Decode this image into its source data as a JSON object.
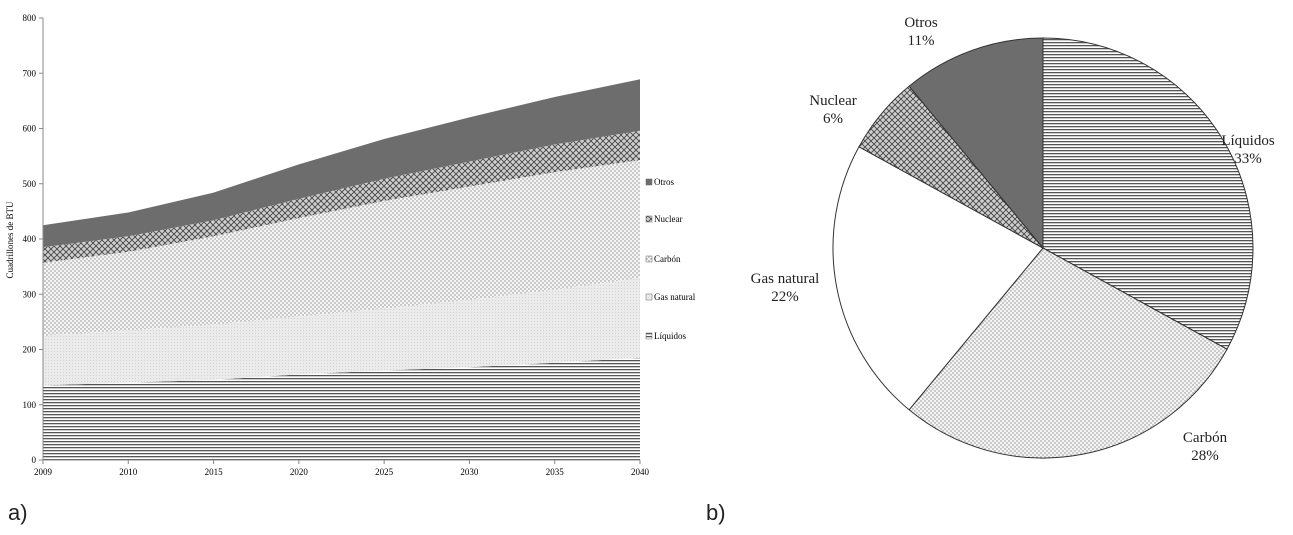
{
  "panel_labels": {
    "a": "a)",
    "b": "b)"
  },
  "chart_data": [
    {
      "type": "area",
      "stacked": true,
      "ylabel": "Cuadrillones de BTU",
      "xlabel": "",
      "title": "",
      "ylim": [
        0,
        800
      ],
      "yticks": [
        "0",
        "100",
        "200",
        "300",
        "400",
        "500",
        "600",
        "700",
        "800"
      ],
      "x": [
        "2009",
        "2010",
        "2015",
        "2020",
        "2025",
        "2030",
        "2035",
        "2040"
      ],
      "grid": false,
      "legend_position": "right",
      "series": [
        {
          "name": "Líquidos",
          "pattern": "hlines",
          "color": "#4a4a4a",
          "values": [
            135,
            140,
            145,
            155,
            162,
            168,
            176,
            185
          ]
        },
        {
          "name": "Gas natural",
          "pattern": "fine",
          "color": "#e6e6e6",
          "values": [
            90,
            95,
            100,
            105,
            112,
            122,
            132,
            145
          ]
        },
        {
          "name": "Carbón",
          "pattern": "dots",
          "color": "#d4d4d4",
          "values": [
            132,
            142,
            160,
            178,
            195,
            205,
            213,
            213
          ]
        },
        {
          "name": "Nuclear",
          "pattern": "cross",
          "color": "#8e8e8e",
          "values": [
            28,
            28,
            29,
            35,
            40,
            45,
            50,
            53
          ]
        },
        {
          "name": "Otros",
          "pattern": "solid",
          "color": "#6f6f6f",
          "values": [
            40,
            43,
            50,
            62,
            72,
            80,
            86,
            93
          ]
        }
      ],
      "legend_order": [
        "Otros",
        "Nuclear",
        "Carbón",
        "Gas natural",
        "Líquidos"
      ]
    },
    {
      "type": "pie",
      "title": "",
      "start": "top",
      "direction": "clockwise",
      "slices": [
        {
          "name": "Líquidos",
          "value": 33,
          "label": "33%",
          "pattern": "hlines",
          "color": "#4a4a4a"
        },
        {
          "name": "Carbón",
          "value": 28,
          "label": "28%",
          "pattern": "dots",
          "color": "#d4d4d4"
        },
        {
          "name": "Gas natural",
          "value": 22,
          "label": "22%",
          "pattern": "white",
          "color": "#ffffff"
        },
        {
          "name": "Nuclear",
          "value": 6,
          "label": "6%",
          "pattern": "cross",
          "color": "#8e8e8e"
        },
        {
          "name": "Otros",
          "value": 11,
          "label": "11%",
          "pattern": "solid",
          "color": "#6f6f6f"
        }
      ]
    }
  ]
}
